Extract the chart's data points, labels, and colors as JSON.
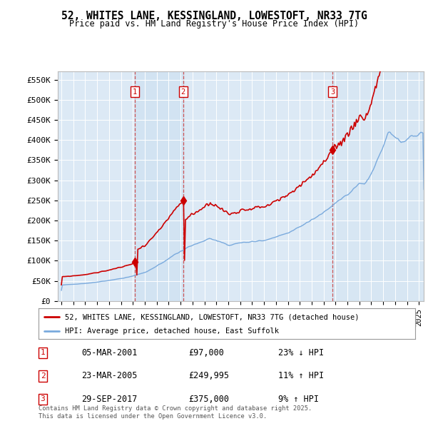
{
  "title": "52, WHITES LANE, KESSINGLAND, LOWESTOFT, NR33 7TG",
  "subtitle": "Price paid vs. HM Land Registry's House Price Index (HPI)",
  "legend_line1": "52, WHITES LANE, KESSINGLAND, LOWESTOFT, NR33 7TG (detached house)",
  "legend_line2": "HPI: Average price, detached house, East Suffolk",
  "sale1_date": "05-MAR-2001",
  "sale1_price": 97000,
  "sale1_pct": "23% ↓ HPI",
  "sale2_date": "23-MAR-2005",
  "sale2_price": 249995,
  "sale2_pct": "11% ↑ HPI",
  "sale3_date": "29-SEP-2017",
  "sale3_price": 375000,
  "sale3_pct": "9% ↑ HPI",
  "copyright": "Contains HM Land Registry data © Crown copyright and database right 2025.\nThis data is licensed under the Open Government Licence v3.0.",
  "yticks": [
    0,
    50000,
    100000,
    150000,
    200000,
    250000,
    300000,
    350000,
    400000,
    450000,
    500000,
    550000
  ],
  "ytick_labels": [
    "£0",
    "£50K",
    "£100K",
    "£150K",
    "£200K",
    "£250K",
    "£300K",
    "£350K",
    "£400K",
    "£450K",
    "£500K",
    "£550K"
  ],
  "ylim": [
    0,
    570000
  ],
  "bg_color": "#dce9f5",
  "red_line_color": "#cc0000",
  "blue_line_color": "#7aaadd",
  "sale1_x": 2001.17,
  "sale2_x": 2005.22,
  "sale3_x": 2017.75,
  "xmin": 1994.7,
  "xmax": 2025.4
}
